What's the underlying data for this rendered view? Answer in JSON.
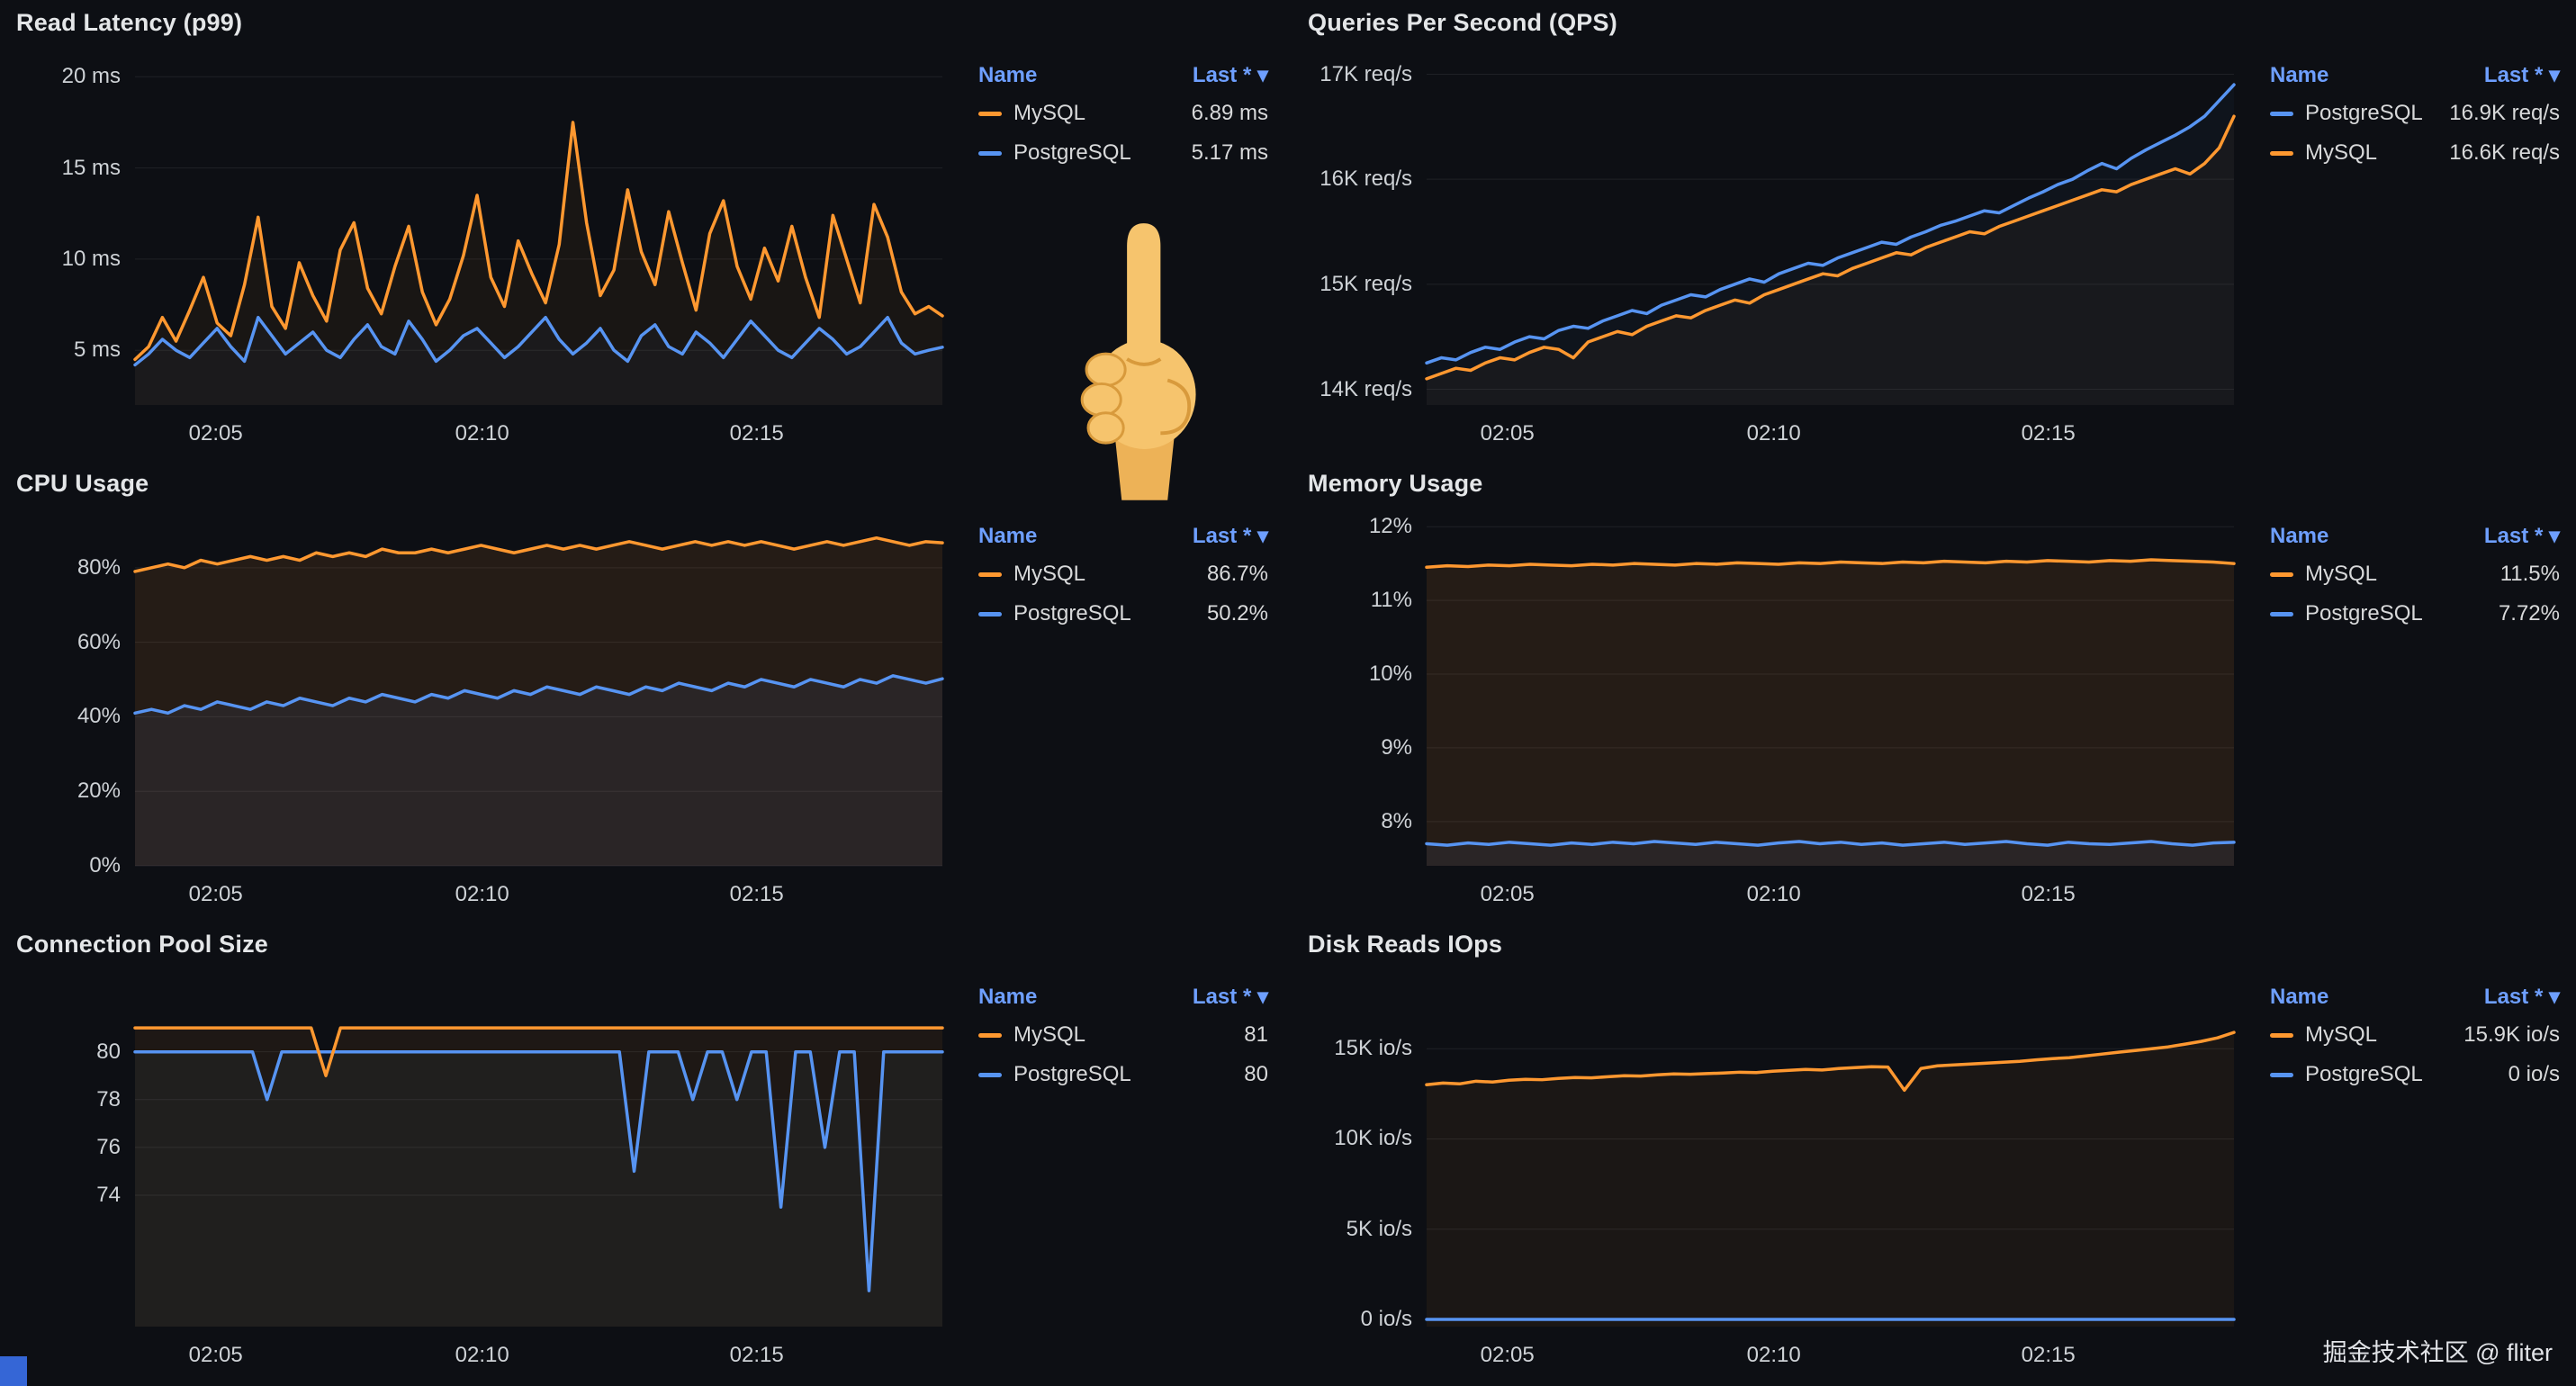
{
  "page": {
    "watermark": "掘金技术社区 @ fliter",
    "background": "#0d0f14"
  },
  "colors": {
    "mysql": "#ff9830",
    "postgresql": "#5794f2",
    "legend_header": "#6e9fff",
    "grid": "rgba(255,255,255,0.08)",
    "axis_text": "#ced2d6",
    "text": "#d8d9da"
  },
  "icons": {
    "caret_down": "▾",
    "pointing_up_emoji": "pointing-up-hand"
  },
  "legend": {
    "name_header": "Name",
    "last_header": "Last *"
  },
  "chart_data": [
    {
      "type": "line",
      "title": "Read Latency (p99)",
      "ylim": [
        2,
        21
      ],
      "yticks": [
        {
          "v": 5,
          "label": "5 ms"
        },
        {
          "v": 10,
          "label": "10 ms"
        },
        {
          "v": 15,
          "label": "15 ms"
        },
        {
          "v": 20,
          "label": "20 ms"
        }
      ],
      "xticks": [
        {
          "pos": 0.1,
          "label": "02:05"
        },
        {
          "pos": 0.43,
          "label": "02:10"
        },
        {
          "pos": 0.77,
          "label": "02:15"
        }
      ],
      "series": [
        {
          "name": "MySQL",
          "color": "#ff9830",
          "last": "6.89 ms",
          "fill_opacity": 0.05,
          "values": [
            4.5,
            5.2,
            6.8,
            5.5,
            7.2,
            9.0,
            6.5,
            5.8,
            8.6,
            12.3,
            7.4,
            6.2,
            9.8,
            8.0,
            6.6,
            10.5,
            12.0,
            8.4,
            7.0,
            9.6,
            11.8,
            8.2,
            6.4,
            7.8,
            10.2,
            13.5,
            9.0,
            7.4,
            11.0,
            9.2,
            7.6,
            10.8,
            17.5,
            12.0,
            8.0,
            9.4,
            13.8,
            10.4,
            8.6,
            12.6,
            9.8,
            7.2,
            11.4,
            13.2,
            9.6,
            7.8,
            10.6,
            8.8,
            11.8,
            9.0,
            6.8,
            12.4,
            10.0,
            7.6,
            13.0,
            11.2,
            8.2,
            7.0,
            7.4,
            6.89
          ]
        },
        {
          "name": "PostgreSQL",
          "color": "#5794f2",
          "last": "5.17 ms",
          "fill_opacity": 0.04,
          "values": [
            4.2,
            4.8,
            5.6,
            5.0,
            4.6,
            5.4,
            6.2,
            5.2,
            4.4,
            6.8,
            5.8,
            4.8,
            5.4,
            6.0,
            5.0,
            4.6,
            5.6,
            6.4,
            5.2,
            4.8,
            6.6,
            5.6,
            4.4,
            5.0,
            5.8,
            6.2,
            5.4,
            4.6,
            5.2,
            6.0,
            6.8,
            5.6,
            4.8,
            5.4,
            6.2,
            5.0,
            4.4,
            5.8,
            6.4,
            5.2,
            4.8,
            6.0,
            5.4,
            4.6,
            5.6,
            6.6,
            5.8,
            5.0,
            4.6,
            5.4,
            6.2,
            5.6,
            4.8,
            5.2,
            6.0,
            6.8,
            5.4,
            4.8,
            5.0,
            5.17
          ]
        }
      ]
    },
    {
      "type": "line",
      "title": "Queries Per Second (QPS)",
      "ylim": [
        13850,
        17150
      ],
      "yticks": [
        {
          "v": 14000,
          "label": "14K req/s"
        },
        {
          "v": 15000,
          "label": "15K req/s"
        },
        {
          "v": 16000,
          "label": "16K req/s"
        },
        {
          "v": 17000,
          "label": "17K req/s"
        }
      ],
      "xticks": [
        {
          "pos": 0.1,
          "label": "02:05"
        },
        {
          "pos": 0.43,
          "label": "02:10"
        },
        {
          "pos": 0.77,
          "label": "02:15"
        }
      ],
      "series": [
        {
          "name": "PostgreSQL",
          "color": "#5794f2",
          "last": "16.9K req/s",
          "fill_opacity": 0.04,
          "values": [
            14250,
            14300,
            14280,
            14350,
            14400,
            14380,
            14450,
            14500,
            14480,
            14560,
            14600,
            14580,
            14650,
            14700,
            14750,
            14720,
            14800,
            14850,
            14900,
            14880,
            14950,
            15000,
            15050,
            15020,
            15100,
            15150,
            15200,
            15180,
            15250,
            15300,
            15350,
            15400,
            15380,
            15450,
            15500,
            15560,
            15600,
            15650,
            15700,
            15680,
            15750,
            15820,
            15880,
            15950,
            16000,
            16080,
            16150,
            16100,
            16200,
            16280,
            16350,
            16420,
            16500,
            16600,
            16750,
            16900
          ]
        },
        {
          "name": "MySQL",
          "color": "#ff9830",
          "last": "16.6K req/s",
          "fill_opacity": 0.04,
          "values": [
            14100,
            14150,
            14200,
            14180,
            14250,
            14300,
            14280,
            14350,
            14400,
            14380,
            14300,
            14450,
            14500,
            14550,
            14520,
            14600,
            14650,
            14700,
            14680,
            14750,
            14800,
            14850,
            14820,
            14900,
            14950,
            15000,
            15050,
            15100,
            15080,
            15150,
            15200,
            15250,
            15300,
            15280,
            15350,
            15400,
            15450,
            15500,
            15480,
            15550,
            15600,
            15650,
            15700,
            15750,
            15800,
            15850,
            15900,
            15880,
            15950,
            16000,
            16050,
            16100,
            16050,
            16150,
            16300,
            16600
          ]
        }
      ]
    },
    {
      "type": "line",
      "title": "CPU Usage",
      "ylim": [
        0,
        93
      ],
      "yticks": [
        {
          "v": 0,
          "label": "0%"
        },
        {
          "v": 20,
          "label": "20%"
        },
        {
          "v": 40,
          "label": "40%"
        },
        {
          "v": 60,
          "label": "60%"
        },
        {
          "v": 80,
          "label": "80%"
        }
      ],
      "xticks": [
        {
          "pos": 0.1,
          "label": "02:05"
        },
        {
          "pos": 0.43,
          "label": "02:10"
        },
        {
          "pos": 0.77,
          "label": "02:15"
        }
      ],
      "series": [
        {
          "name": "MySQL",
          "color": "#ff9830",
          "last": "86.7%",
          "fill_opacity": 0.1,
          "values": [
            79,
            80,
            81,
            80,
            82,
            81,
            82,
            83,
            82,
            83,
            82,
            84,
            83,
            84,
            83,
            85,
            84,
            84,
            85,
            84,
            85,
            86,
            85,
            84,
            85,
            86,
            85,
            86,
            85,
            86,
            87,
            86,
            85,
            86,
            87,
            86,
            87,
            86,
            87,
            86,
            85,
            86,
            87,
            86,
            87,
            88,
            87,
            86,
            87,
            86.7
          ]
        },
        {
          "name": "PostgreSQL",
          "color": "#5794f2",
          "last": "50.2%",
          "fill_opacity": 0.08,
          "values": [
            41,
            42,
            41,
            43,
            42,
            44,
            43,
            42,
            44,
            43,
            45,
            44,
            43,
            45,
            44,
            46,
            45,
            44,
            46,
            45,
            47,
            46,
            45,
            47,
            46,
            48,
            47,
            46,
            48,
            47,
            46,
            48,
            47,
            49,
            48,
            47,
            49,
            48,
            50,
            49,
            48,
            50,
            49,
            48,
            50,
            49,
            51,
            50,
            49,
            50.2
          ]
        }
      ]
    },
    {
      "type": "line",
      "title": "Memory Usage",
      "ylim": [
        7.4,
        12.1
      ],
      "yticks": [
        {
          "v": 8,
          "label": "8%"
        },
        {
          "v": 9,
          "label": "9%"
        },
        {
          "v": 10,
          "label": "10%"
        },
        {
          "v": 11,
          "label": "11%"
        },
        {
          "v": 12,
          "label": "12%"
        }
      ],
      "xticks": [
        {
          "pos": 0.1,
          "label": "02:05"
        },
        {
          "pos": 0.43,
          "label": "02:10"
        },
        {
          "pos": 0.77,
          "label": "02:15"
        }
      ],
      "series": [
        {
          "name": "MySQL",
          "color": "#ff9830",
          "last": "11.5%",
          "fill_opacity": 0.1,
          "values": [
            11.45,
            11.47,
            11.46,
            11.48,
            11.47,
            11.49,
            11.48,
            11.47,
            11.49,
            11.48,
            11.5,
            11.49,
            11.48,
            11.5,
            11.49,
            11.51,
            11.5,
            11.49,
            11.51,
            11.5,
            11.52,
            11.51,
            11.5,
            11.52,
            11.51,
            11.53,
            11.52,
            11.51,
            11.53,
            11.52,
            11.54,
            11.53,
            11.52,
            11.54,
            11.53,
            11.55,
            11.54,
            11.53,
            11.52,
            11.5
          ]
        },
        {
          "name": "PostgreSQL",
          "color": "#5794f2",
          "last": "7.72%",
          "fill_opacity": 0.08,
          "values": [
            7.7,
            7.68,
            7.71,
            7.69,
            7.72,
            7.7,
            7.68,
            7.71,
            7.69,
            7.72,
            7.7,
            7.73,
            7.71,
            7.69,
            7.72,
            7.7,
            7.68,
            7.71,
            7.73,
            7.7,
            7.72,
            7.69,
            7.71,
            7.68,
            7.7,
            7.72,
            7.69,
            7.71,
            7.73,
            7.7,
            7.68,
            7.72,
            7.7,
            7.69,
            7.71,
            7.73,
            7.7,
            7.68,
            7.71,
            7.72
          ]
        }
      ]
    },
    {
      "type": "line",
      "title": "Connection Pool Size",
      "ylim": [
        68.5,
        83
      ],
      "yticks": [
        {
          "v": 74,
          "label": "74"
        },
        {
          "v": 76,
          "label": "76"
        },
        {
          "v": 78,
          "label": "78"
        },
        {
          "v": 80,
          "label": "80"
        }
      ],
      "xticks": [
        {
          "pos": 0.1,
          "label": "02:05"
        },
        {
          "pos": 0.43,
          "label": "02:10"
        },
        {
          "pos": 0.77,
          "label": "02:15"
        }
      ],
      "series": [
        {
          "name": "MySQL",
          "color": "#ff9830",
          "last": "81",
          "fill_opacity": 0.07,
          "values": [
            81,
            81,
            81,
            81,
            81,
            81,
            81,
            81,
            81,
            81,
            81,
            81,
            81,
            79,
            81,
            81,
            81,
            81,
            81,
            81,
            81,
            81,
            81,
            81,
            81,
            81,
            81,
            81,
            81,
            81,
            81,
            81,
            81,
            81,
            81,
            81,
            81,
            81,
            81,
            81,
            81,
            81,
            81,
            81,
            81,
            81,
            81,
            81,
            81,
            81,
            81,
            81,
            81,
            81,
            81,
            81
          ]
        },
        {
          "name": "PostgreSQL",
          "color": "#5794f2",
          "last": "80",
          "fill_opacity": 0.05,
          "values": [
            80,
            80,
            80,
            80,
            80,
            80,
            80,
            80,
            80,
            78,
            80,
            80,
            80,
            80,
            80,
            80,
            80,
            80,
            80,
            80,
            80,
            80,
            80,
            80,
            80,
            80,
            80,
            80,
            80,
            80,
            80,
            80,
            80,
            80,
            75,
            80,
            80,
            80,
            78,
            80,
            80,
            78,
            80,
            80,
            73.5,
            80,
            80,
            76,
            80,
            80,
            70,
            80,
            80,
            80,
            80,
            80
          ]
        }
      ]
    },
    {
      "type": "line",
      "title": "Disk Reads IOps",
      "ylim": [
        -400,
        18800
      ],
      "yticks": [
        {
          "v": 0,
          "label": "0 io/s"
        },
        {
          "v": 5000,
          "label": "5K io/s"
        },
        {
          "v": 10000,
          "label": "10K io/s"
        },
        {
          "v": 15000,
          "label": "15K io/s"
        }
      ],
      "xticks": [
        {
          "pos": 0.1,
          "label": "02:05"
        },
        {
          "pos": 0.43,
          "label": "02:10"
        },
        {
          "pos": 0.77,
          "label": "02:15"
        }
      ],
      "series": [
        {
          "name": "MySQL",
          "color": "#ff9830",
          "last": "15.9K io/s",
          "fill_opacity": 0.06,
          "values": [
            13000,
            13100,
            13050,
            13200,
            13150,
            13250,
            13300,
            13280,
            13350,
            13400,
            13380,
            13450,
            13500,
            13480,
            13550,
            13600,
            13580,
            13620,
            13650,
            13700,
            13680,
            13750,
            13800,
            13850,
            13820,
            13900,
            13950,
            14000,
            13980,
            12700,
            13900,
            14050,
            14100,
            14150,
            14200,
            14250,
            14300,
            14380,
            14450,
            14500,
            14600,
            14700,
            14800,
            14900,
            15000,
            15100,
            15250,
            15400,
            15600,
            15900
          ]
        },
        {
          "name": "PostgreSQL",
          "color": "#5794f2",
          "last": "0 io/s",
          "fill_opacity": 0,
          "values": [
            0,
            0,
            0,
            0,
            0,
            0,
            0,
            0,
            0,
            0,
            0,
            0,
            0,
            0,
            0,
            0,
            0,
            0,
            0,
            0,
            0,
            0,
            0,
            0,
            0,
            0,
            0,
            0,
            0,
            0,
            0,
            0,
            0,
            0,
            0,
            0,
            0,
            0,
            0,
            0,
            0,
            0,
            0,
            0,
            0,
            0,
            0,
            0,
            0,
            0
          ]
        }
      ]
    }
  ]
}
